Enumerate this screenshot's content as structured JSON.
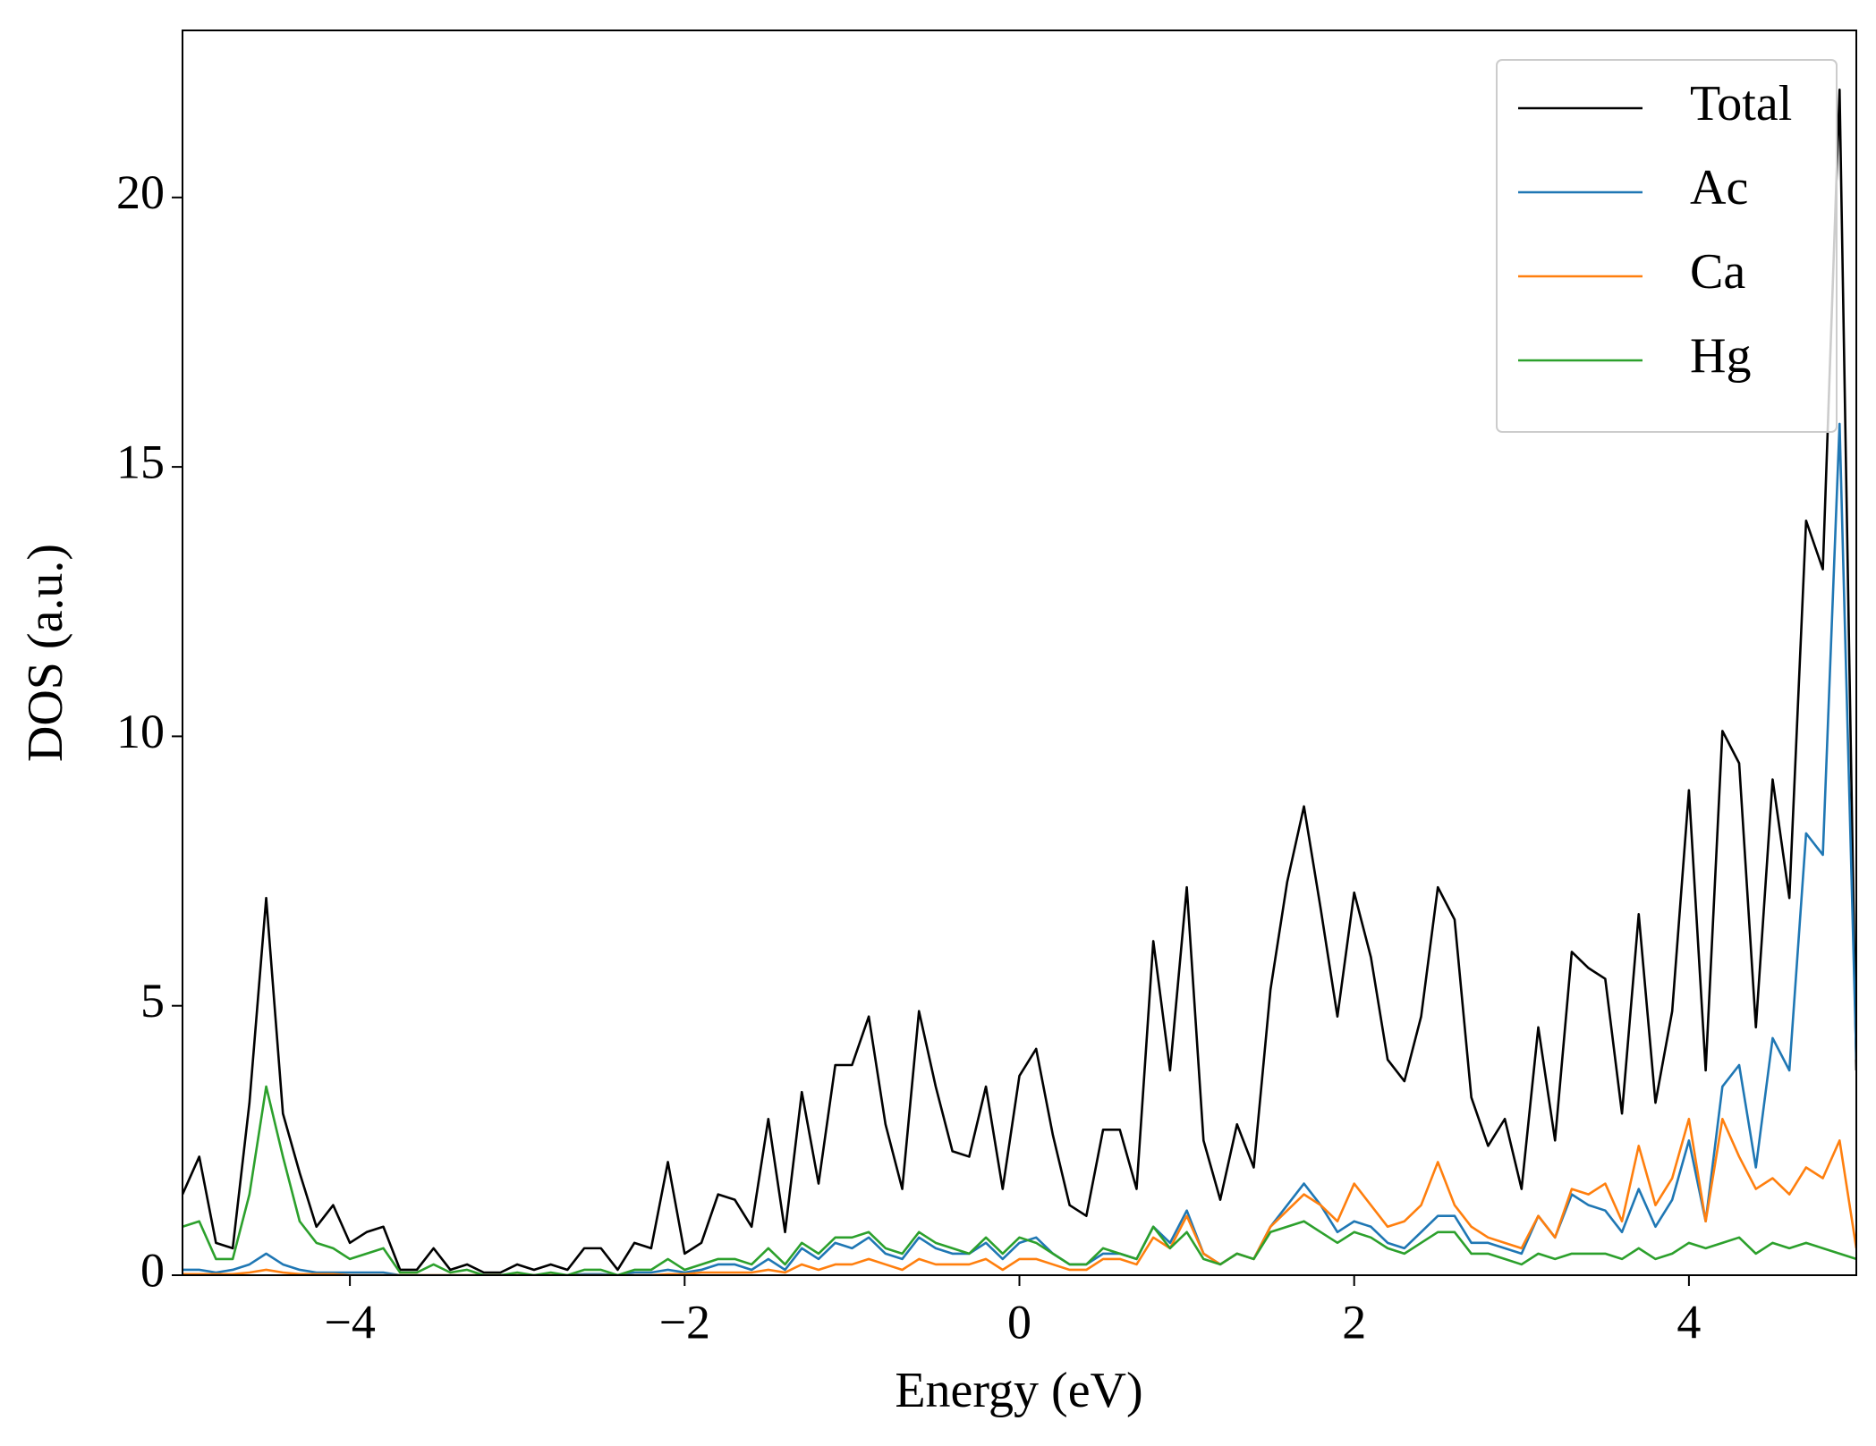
{
  "chart_data": {
    "type": "line",
    "xlabel": "Energy (eV)",
    "ylabel": "DOS (a.u.)",
    "x": [
      -5.0,
      -4.9,
      -4.8,
      -4.7,
      -4.6,
      -4.5,
      -4.4,
      -4.3,
      -4.2,
      -4.1,
      -4.0,
      -3.9,
      -3.8,
      -3.7,
      -3.6,
      -3.5,
      -3.4,
      -3.3,
      -3.2,
      -3.1,
      -3.0,
      -2.9,
      -2.8,
      -2.7,
      -2.6,
      -2.5,
      -2.4,
      -2.3,
      -2.2,
      -2.1,
      -2.0,
      -1.9,
      -1.8,
      -1.7,
      -1.6,
      -1.5,
      -1.4,
      -1.3,
      -1.2,
      -1.1,
      -1.0,
      -0.9,
      -0.8,
      -0.7,
      -0.6,
      -0.5,
      -0.4,
      -0.3,
      -0.2,
      -0.1,
      0.0,
      0.1,
      0.2,
      0.3,
      0.4,
      0.5,
      0.6,
      0.7,
      0.8,
      0.9,
      1.0,
      1.1,
      1.2,
      1.3,
      1.4,
      1.5,
      1.6,
      1.7,
      1.8,
      1.9,
      2.0,
      2.1,
      2.2,
      2.3,
      2.4,
      2.5,
      2.6,
      2.7,
      2.8,
      2.9,
      3.0,
      3.1,
      3.2,
      3.3,
      3.4,
      3.5,
      3.6,
      3.7,
      3.8,
      3.9,
      4.0,
      4.1,
      4.2,
      4.3,
      4.4,
      4.5,
      4.6,
      4.7,
      4.8,
      4.9,
      5.0
    ],
    "series": [
      {
        "name": "Total",
        "color": "#000000",
        "values": [
          1.5,
          2.2,
          0.6,
          0.5,
          3.2,
          7.0,
          3.0,
          1.9,
          0.9,
          1.3,
          0.6,
          0.8,
          0.9,
          0.1,
          0.1,
          0.5,
          0.1,
          0.2,
          0.05,
          0.05,
          0.2,
          0.1,
          0.2,
          0.1,
          0.5,
          0.5,
          0.1,
          0.6,
          0.5,
          2.1,
          0.4,
          0.6,
          1.5,
          1.4,
          0.9,
          2.9,
          0.8,
          3.4,
          1.7,
          3.9,
          3.9,
          4.8,
          2.8,
          1.6,
          4.9,
          3.5,
          2.3,
          2.2,
          3.5,
          1.6,
          3.7,
          4.2,
          2.6,
          1.3,
          1.1,
          2.7,
          2.7,
          1.6,
          6.2,
          3.8,
          7.2,
          2.5,
          1.4,
          2.8,
          2.0,
          5.3,
          7.3,
          8.7,
          6.8,
          4.8,
          7.1,
          5.9,
          4.0,
          3.6,
          4.8,
          7.2,
          6.6,
          3.3,
          2.4,
          2.9,
          1.6,
          4.6,
          2.5,
          6.0,
          5.7,
          5.5,
          3.0,
          6.7,
          3.2,
          4.9,
          9.0,
          3.8,
          10.1,
          9.5,
          4.6,
          9.2,
          7.0,
          14.0,
          13.1,
          22.0,
          3.8
        ]
      },
      {
        "name": "Ac",
        "color": "#1f77b4",
        "values": [
          0.1,
          0.1,
          0.05,
          0.1,
          0.2,
          0.4,
          0.2,
          0.1,
          0.05,
          0.05,
          0.05,
          0.05,
          0.05,
          0,
          0,
          0,
          0,
          0,
          0,
          0,
          0,
          0,
          0,
          0,
          0.02,
          0.02,
          0,
          0.05,
          0.05,
          0.1,
          0.05,
          0.1,
          0.2,
          0.2,
          0.1,
          0.3,
          0.1,
          0.5,
          0.3,
          0.6,
          0.5,
          0.7,
          0.4,
          0.3,
          0.7,
          0.5,
          0.4,
          0.4,
          0.6,
          0.3,
          0.6,
          0.7,
          0.4,
          0.2,
          0.2,
          0.4,
          0.4,
          0.3,
          0.9,
          0.6,
          1.2,
          0.4,
          0.2,
          0.4,
          0.3,
          0.9,
          1.3,
          1.7,
          1.3,
          0.8,
          1.0,
          0.9,
          0.6,
          0.5,
          0.8,
          1.1,
          1.1,
          0.6,
          0.6,
          0.5,
          0.4,
          1.1,
          0.7,
          1.5,
          1.3,
          1.2,
          0.8,
          1.6,
          0.9,
          1.4,
          2.5,
          1.0,
          3.5,
          3.9,
          2.0,
          4.4,
          3.8,
          8.2,
          7.8,
          15.8,
          4.0
        ]
      },
      {
        "name": "Ca",
        "color": "#ff7f0e",
        "values": [
          0.02,
          0.02,
          0.02,
          0.02,
          0.05,
          0.1,
          0.05,
          0.02,
          0.02,
          0.02,
          0,
          0,
          0,
          0,
          0,
          0,
          0,
          0,
          0,
          0,
          0,
          0,
          0,
          0,
          0,
          0,
          0,
          0,
          0,
          0.02,
          0.02,
          0.05,
          0.05,
          0.05,
          0.05,
          0.1,
          0.05,
          0.2,
          0.1,
          0.2,
          0.2,
          0.3,
          0.2,
          0.1,
          0.3,
          0.2,
          0.2,
          0.2,
          0.3,
          0.1,
          0.3,
          0.3,
          0.2,
          0.1,
          0.1,
          0.3,
          0.3,
          0.2,
          0.7,
          0.5,
          1.1,
          0.4,
          0.2,
          0.4,
          0.3,
          0.9,
          1.2,
          1.5,
          1.3,
          1.0,
          1.7,
          1.3,
          0.9,
          1.0,
          1.3,
          2.1,
          1.3,
          0.9,
          0.7,
          0.6,
          0.5,
          1.1,
          0.7,
          1.6,
          1.5,
          1.7,
          1.0,
          2.4,
          1.3,
          1.8,
          2.9,
          1.0,
          2.9,
          2.2,
          1.6,
          1.8,
          1.5,
          2.0,
          1.8,
          2.5,
          0.5
        ]
      },
      {
        "name": "Hg",
        "color": "#2ca02c",
        "values": [
          0.9,
          1.0,
          0.3,
          0.3,
          1.5,
          3.5,
          2.2,
          1.0,
          0.6,
          0.5,
          0.3,
          0.4,
          0.5,
          0.05,
          0.05,
          0.2,
          0.05,
          0.1,
          0,
          0,
          0.05,
          0,
          0.05,
          0,
          0.1,
          0.1,
          0,
          0.1,
          0.1,
          0.3,
          0.1,
          0.2,
          0.3,
          0.3,
          0.2,
          0.5,
          0.2,
          0.6,
          0.4,
          0.7,
          0.7,
          0.8,
          0.5,
          0.4,
          0.8,
          0.6,
          0.5,
          0.4,
          0.7,
          0.4,
          0.7,
          0.6,
          0.4,
          0.2,
          0.2,
          0.5,
          0.4,
          0.3,
          0.9,
          0.5,
          0.8,
          0.3,
          0.2,
          0.4,
          0.3,
          0.8,
          0.9,
          1.0,
          0.8,
          0.6,
          0.8,
          0.7,
          0.5,
          0.4,
          0.6,
          0.8,
          0.8,
          0.4,
          0.4,
          0.3,
          0.2,
          0.4,
          0.3,
          0.4,
          0.4,
          0.4,
          0.3,
          0.5,
          0.3,
          0.4,
          0.6,
          0.5,
          0.6,
          0.7,
          0.4,
          0.6,
          0.5,
          0.6,
          0.5,
          0.4,
          0.3
        ]
      }
    ],
    "xlim": [
      -5,
      5
    ],
    "xticks": [
      {
        "value": -4,
        "label": "−4"
      },
      {
        "value": -2,
        "label": "−2"
      },
      0,
      2,
      4
    ],
    "ylim": [
      0,
      23.1
    ],
    "yticks": [
      0,
      5,
      10,
      15,
      20
    ],
    "grid": false,
    "legend": "upper right"
  }
}
